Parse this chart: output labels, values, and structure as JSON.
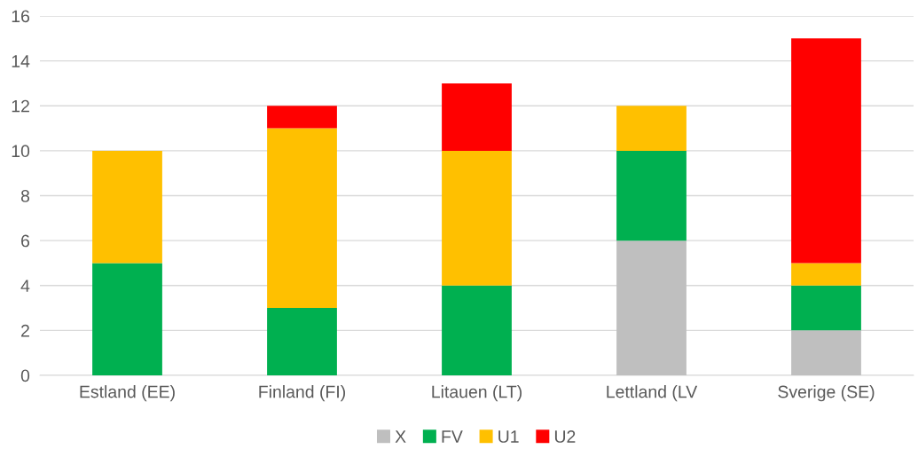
{
  "chart_data": {
    "type": "bar",
    "stacked": true,
    "categories": [
      "Estland (EE)",
      "Finland (FI)",
      "Litauen (LT)",
      "Lettland (LV",
      "Sverige (SE)"
    ],
    "series": [
      {
        "name": "X",
        "color": "#bfbfbf",
        "values": [
          0,
          0,
          0,
          6,
          2
        ]
      },
      {
        "name": "FV",
        "color": "#00b050",
        "values": [
          5,
          3,
          4,
          4,
          2
        ]
      },
      {
        "name": "U1",
        "color": "#ffc000",
        "values": [
          5,
          8,
          6,
          2,
          1
        ]
      },
      {
        "name": "U2",
        "color": "#ff0000",
        "values": [
          0,
          1,
          3,
          0,
          10
        ]
      }
    ],
    "ylim": [
      0,
      16
    ],
    "yticks": [
      0,
      2,
      4,
      6,
      8,
      10,
      12,
      14,
      16
    ],
    "grid": "y",
    "legend": "bottom"
  }
}
